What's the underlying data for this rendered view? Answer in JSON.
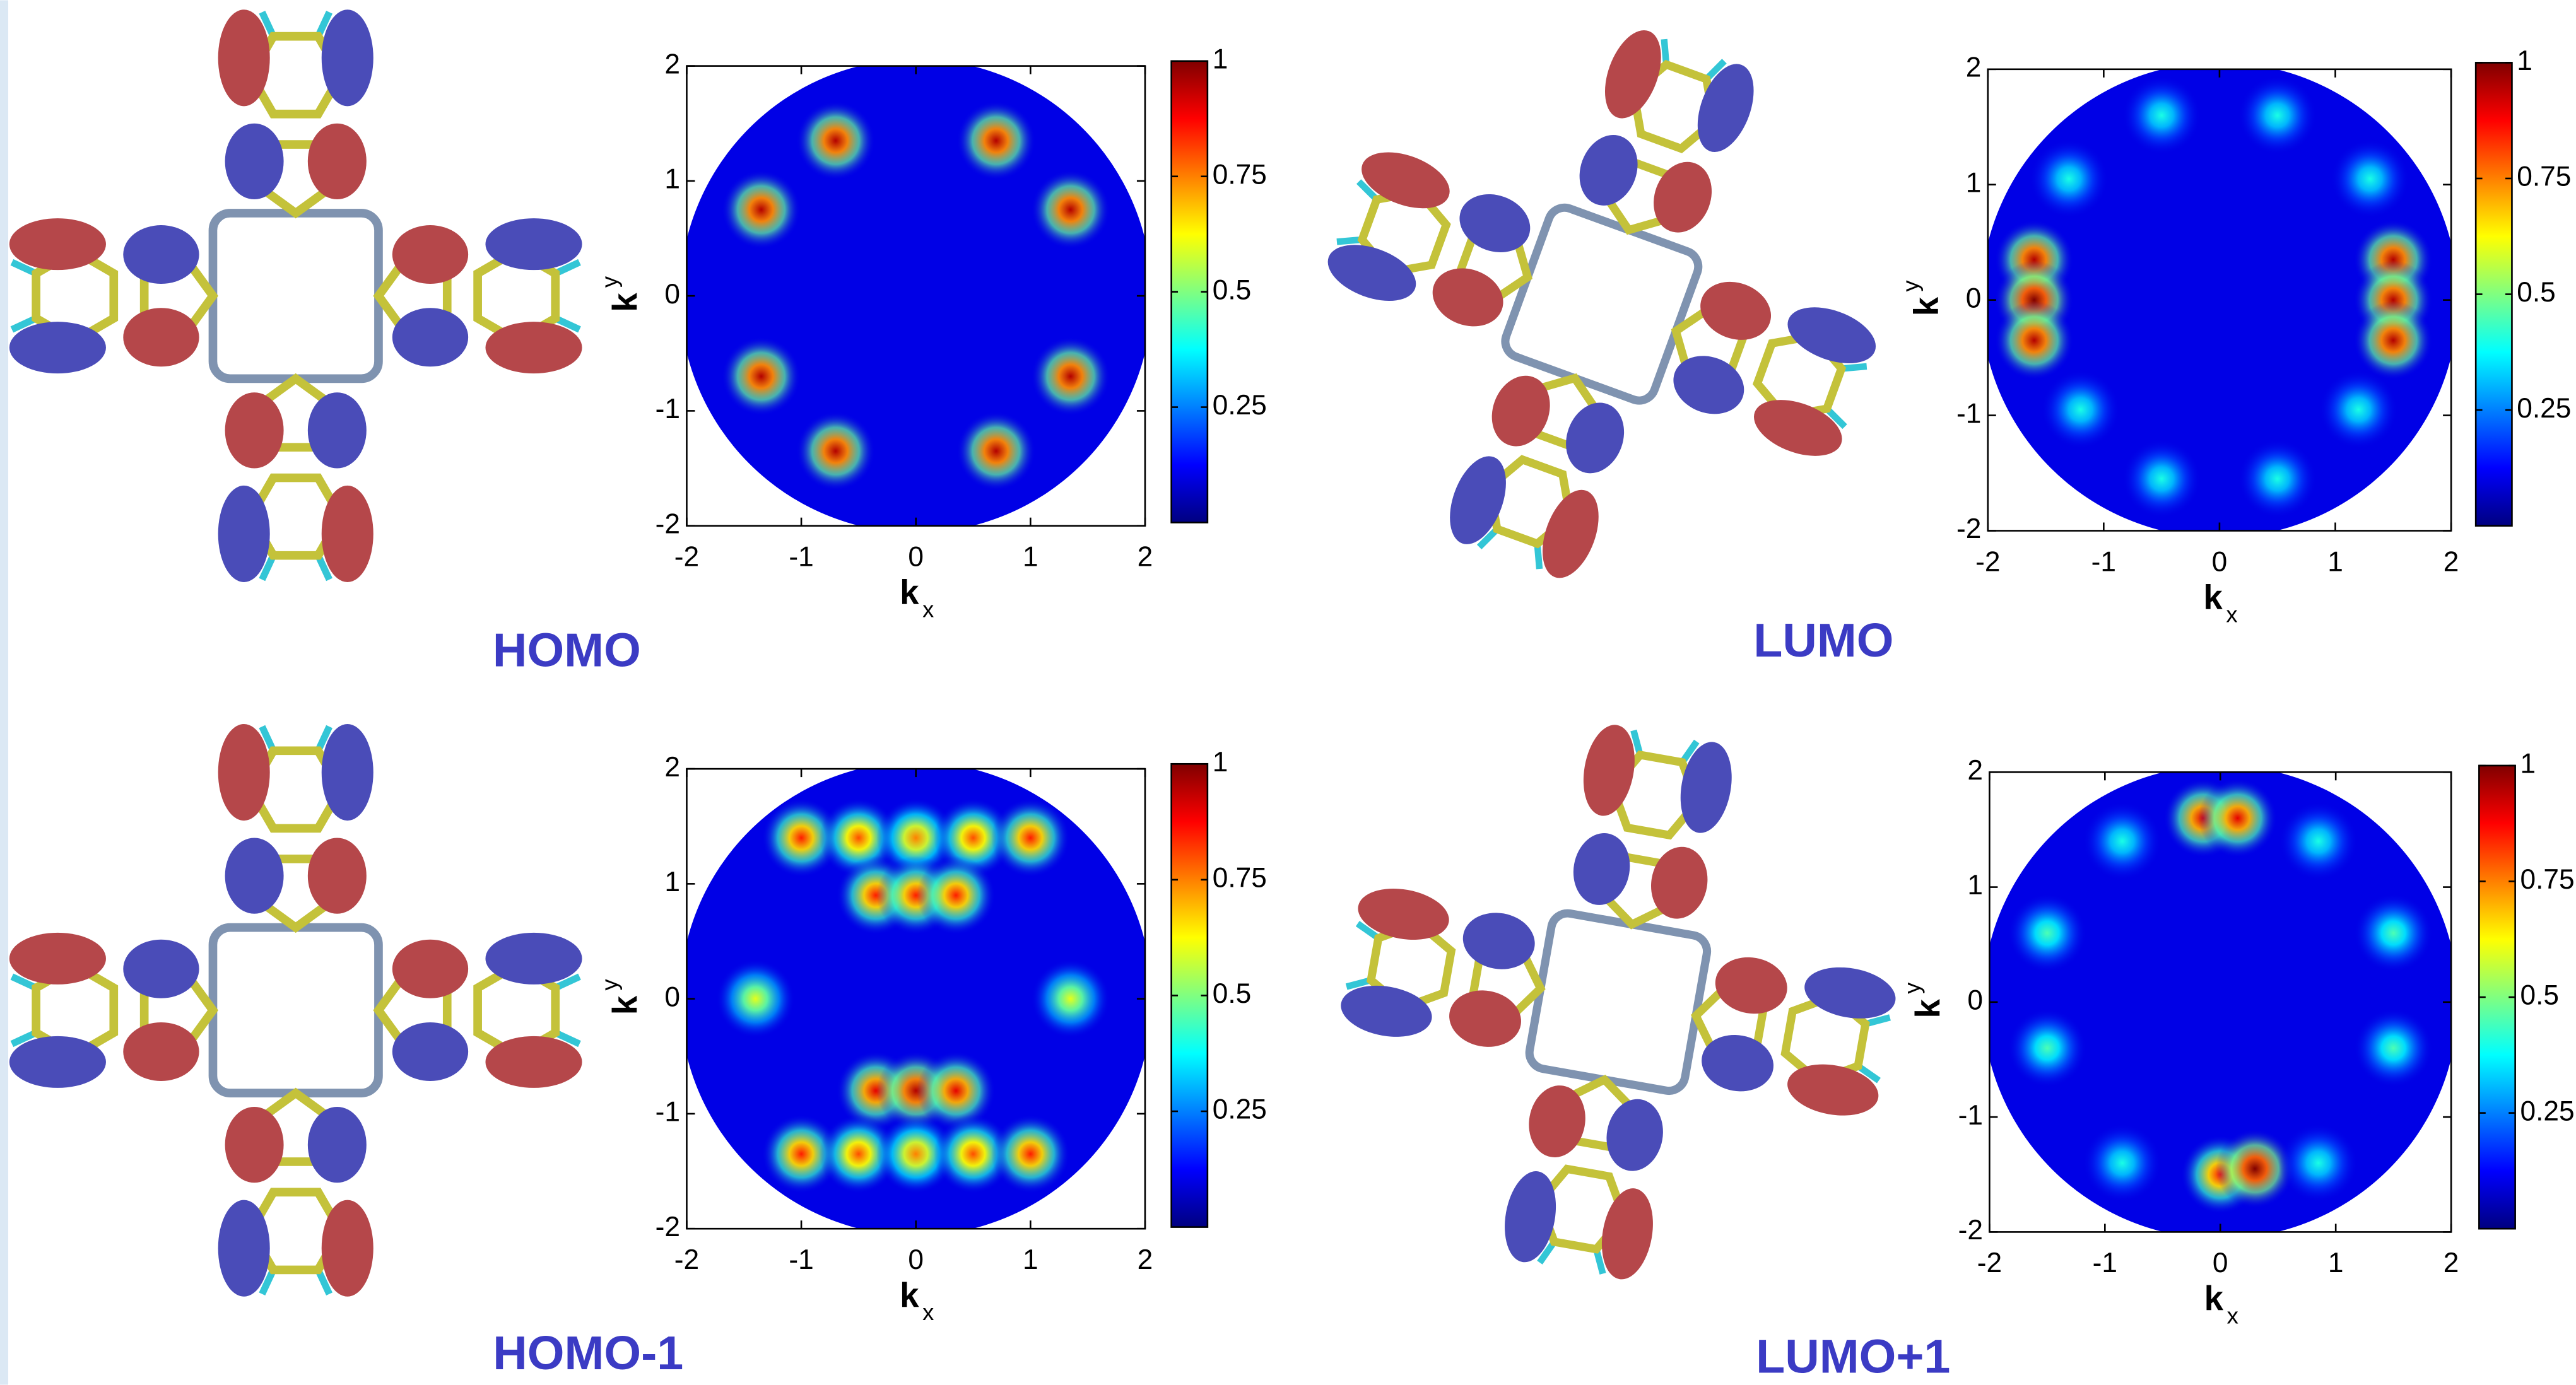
{
  "chart_data": [
    {
      "type": "heatmap",
      "title": "HOMO",
      "xlabel": "k",
      "xlabel_sub": "x",
      "ylabel": "k",
      "ylabel_sub": "y",
      "xlim": [
        -2,
        2
      ],
      "ylim": [
        -2,
        2
      ],
      "xticks": [
        -2,
        -1,
        0,
        1,
        2
      ],
      "yticks": [
        -2,
        -1,
        0,
        1,
        2
      ],
      "colormap": "jet",
      "clim": [
        0,
        1
      ],
      "cticks": [
        0.25,
        0.5,
        0.75,
        1
      ],
      "spots": {
        "x": [
          -0.7,
          0.7,
          -1.35,
          1.35,
          -1.35,
          1.35,
          -0.7,
          0.7
        ],
        "y": [
          1.35,
          1.35,
          0.75,
          0.75,
          -0.7,
          -0.7,
          -1.35,
          -1.35
        ],
        "values": [
          0.95,
          0.95,
          0.95,
          0.95,
          0.95,
          0.95,
          0.95,
          0.95
        ]
      }
    },
    {
      "type": "heatmap",
      "title": "LUMO",
      "xlabel": "k",
      "xlabel_sub": "x",
      "ylabel": "k",
      "ylabel_sub": "y",
      "xlim": [
        -2,
        2
      ],
      "ylim": [
        -2,
        2
      ],
      "xticks": [
        -2,
        -1,
        0,
        1,
        2
      ],
      "yticks": [
        -2,
        -1,
        0,
        1,
        2
      ],
      "colormap": "jet",
      "clim": [
        0,
        1
      ],
      "cticks": [
        0.25,
        0.5,
        0.75,
        1
      ],
      "spots": {
        "x": [
          -1.6,
          -1.6,
          -1.6,
          1.5,
          1.5,
          1.5,
          -0.5,
          0.5,
          -1.3,
          1.3,
          -1.2,
          1.2,
          -0.5,
          0.5
        ],
        "y": [
          0.35,
          0,
          -0.35,
          0.35,
          0,
          -0.35,
          1.6,
          1.6,
          1.05,
          1.05,
          -0.95,
          -0.95,
          -1.55,
          -1.55
        ],
        "values": [
          0.95,
          1,
          0.95,
          0.95,
          0.95,
          0.95,
          0.4,
          0.4,
          0.4,
          0.4,
          0.4,
          0.4,
          0.4,
          0.4
        ]
      }
    },
    {
      "type": "heatmap",
      "title": "HOMO-1",
      "xlabel": "k",
      "xlabel_sub": "x",
      "ylabel": "k",
      "ylabel_sub": "y",
      "xlim": [
        -2,
        2
      ],
      "ylim": [
        -2,
        2
      ],
      "xticks": [
        -2,
        -1,
        0,
        1,
        2
      ],
      "yticks": [
        -2,
        -1,
        0,
        1,
        2
      ],
      "colormap": "jet",
      "clim": [
        0,
        1
      ],
      "cticks": [
        0.25,
        0.5,
        0.75,
        1
      ],
      "spots": {
        "x": [
          -1.0,
          -0.5,
          0,
          0.5,
          1.0,
          -0.35,
          0,
          0.35,
          -1.4,
          1.35,
          -0.35,
          0,
          0.35,
          -1.0,
          -0.5,
          0,
          0.5,
          1.0
        ],
        "y": [
          1.4,
          1.4,
          1.4,
          1.4,
          1.4,
          0.9,
          0.9,
          0.9,
          0,
          0,
          -0.8,
          -0.8,
          -0.8,
          -1.35,
          -1.35,
          -1.35,
          -1.35,
          -1.35
        ],
        "values": [
          0.85,
          0.8,
          0.75,
          0.8,
          0.85,
          0.85,
          0.85,
          0.85,
          0.6,
          0.6,
          0.9,
          0.95,
          0.9,
          0.85,
          0.8,
          0.75,
          0.8,
          0.85
        ]
      }
    },
    {
      "type": "heatmap",
      "title": "LUMO+1",
      "xlabel": "k",
      "xlabel_sub": "x",
      "ylabel": "k",
      "ylabel_sub": "y",
      "xlim": [
        -2,
        2
      ],
      "ylim": [
        -2,
        2
      ],
      "xticks": [
        -2,
        -1,
        0,
        1,
        2
      ],
      "yticks": [
        -2,
        -1,
        0,
        1,
        2
      ],
      "colormap": "jet",
      "clim": [
        0,
        1
      ],
      "cticks": [
        0.25,
        0.5,
        0.75,
        1
      ],
      "spots": {
        "x": [
          -0.15,
          0.15,
          0,
          0.3,
          -0.85,
          0.85,
          -1.5,
          1.5,
          -1.5,
          1.5,
          -0.85,
          0.85
        ],
        "y": [
          1.6,
          1.6,
          -1.5,
          -1.45,
          1.4,
          1.4,
          0.6,
          0.6,
          -0.4,
          -0.4,
          -1.4,
          -1.4
        ],
        "values": [
          0.9,
          0.9,
          0.85,
          1,
          0.4,
          0.4,
          0.45,
          0.45,
          0.45,
          0.45,
          0.4,
          0.4
        ]
      }
    }
  ]
}
